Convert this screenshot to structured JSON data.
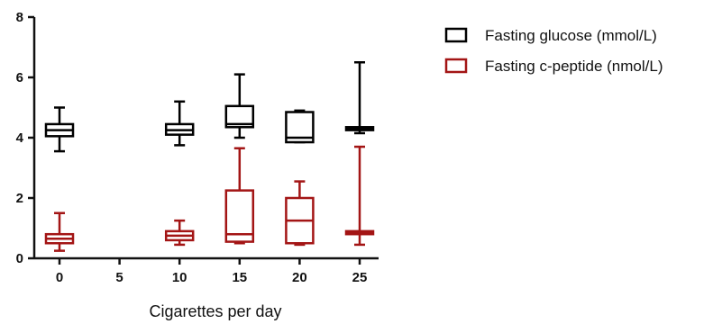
{
  "chart_data": {
    "type": "box",
    "title": "",
    "xlabel": "Cigarettes per day",
    "ylabel": "",
    "x_ticks": [
      0,
      5,
      10,
      15,
      20,
      25
    ],
    "y_ticks": [
      0,
      2,
      4,
      6,
      8
    ],
    "xlim": [
      0,
      25
    ],
    "ylim": [
      0,
      8
    ],
    "grid": false,
    "legend_position": "top-right",
    "series": [
      {
        "name": "Fasting glucose (mmol/L)",
        "color": "#000000",
        "boxes": [
          {
            "x": 0,
            "min": 3.55,
            "q1": 4.05,
            "median": 4.25,
            "q3": 4.45,
            "max": 5.0
          },
          {
            "x": 10,
            "min": 3.75,
            "q1": 4.1,
            "median": 4.25,
            "q3": 4.45,
            "max": 5.2
          },
          {
            "x": 15,
            "min": 4.0,
            "q1": 4.35,
            "median": 4.45,
            "q3": 5.05,
            "max": 6.1
          },
          {
            "x": 20,
            "min": 3.85,
            "q1": 3.85,
            "median": 4.0,
            "q3": 4.85,
            "max": 4.9
          },
          {
            "x": 25,
            "min": 4.15,
            "q1": 4.25,
            "median": 4.3,
            "q3": 4.35,
            "max": 6.5
          }
        ]
      },
      {
        "name": "Fasting c-peptide (nmol/L)",
        "color": "#a31515",
        "boxes": [
          {
            "x": 0,
            "min": 0.25,
            "q1": 0.5,
            "median": 0.65,
            "q3": 0.8,
            "max": 1.5
          },
          {
            "x": 10,
            "min": 0.45,
            "q1": 0.6,
            "median": 0.75,
            "q3": 0.9,
            "max": 1.25
          },
          {
            "x": 15,
            "min": 0.5,
            "q1": 0.55,
            "median": 0.8,
            "q3": 2.25,
            "max": 3.65
          },
          {
            "x": 20,
            "min": 0.45,
            "q1": 0.5,
            "median": 1.25,
            "q3": 2.0,
            "max": 2.55
          },
          {
            "x": 25,
            "min": 0.45,
            "q1": 0.8,
            "median": 0.85,
            "q3": 0.9,
            "max": 3.7
          }
        ]
      }
    ]
  }
}
